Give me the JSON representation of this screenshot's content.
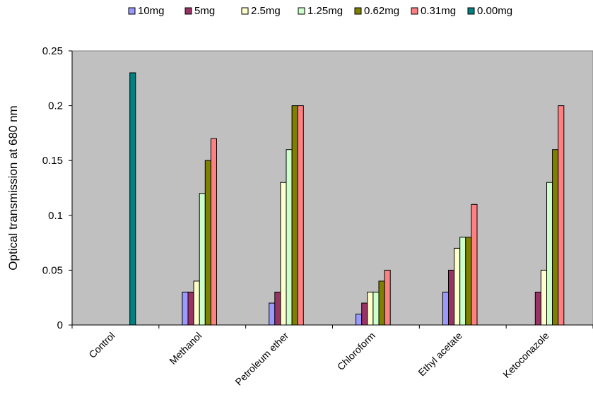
{
  "chart_data": {
    "type": "bar",
    "title": "",
    "xlabel": "",
    "ylabel": "Optical transmission at 680 nm",
    "ylim": [
      0,
      0.25
    ],
    "yticks": [
      "0",
      "0.05",
      "0.1",
      "0.15",
      "0.2",
      "0.25"
    ],
    "grid": false,
    "legend_position": "top",
    "plot_background": "#c0c0c0",
    "categories": [
      "Control",
      "Methanol",
      "Petroleum ether",
      "Chloroform",
      "Ethyl acetate",
      "Ketoconazole"
    ],
    "series": [
      {
        "name": "10mg",
        "color": "#9999ff",
        "values": [
          0,
          0.03,
          0.02,
          0.01,
          0.03,
          0
        ]
      },
      {
        "name": "5mg",
        "color": "#993366",
        "values": [
          0,
          0.03,
          0.03,
          0.02,
          0.05,
          0.03
        ]
      },
      {
        "name": "2.5mg",
        "color": "#ffffcc",
        "values": [
          0,
          0.04,
          0.13,
          0.03,
          0.07,
          0.05
        ]
      },
      {
        "name": "1.25mg",
        "color": "#ccffcc",
        "values": [
          0,
          0.12,
          0.16,
          0.03,
          0.08,
          0.13
        ]
      },
      {
        "name": "0.62mg",
        "color": "#808000",
        "values": [
          0,
          0.15,
          0.2,
          0.04,
          0.08,
          0.16
        ]
      },
      {
        "name": "0.31mg",
        "color": "#ff8080",
        "values": [
          0,
          0.17,
          0.2,
          0.05,
          0.11,
          0.2
        ]
      },
      {
        "name": "0.00mg",
        "color": "#008080",
        "values": [
          0.23,
          0,
          0,
          0,
          0,
          0
        ]
      }
    ]
  }
}
